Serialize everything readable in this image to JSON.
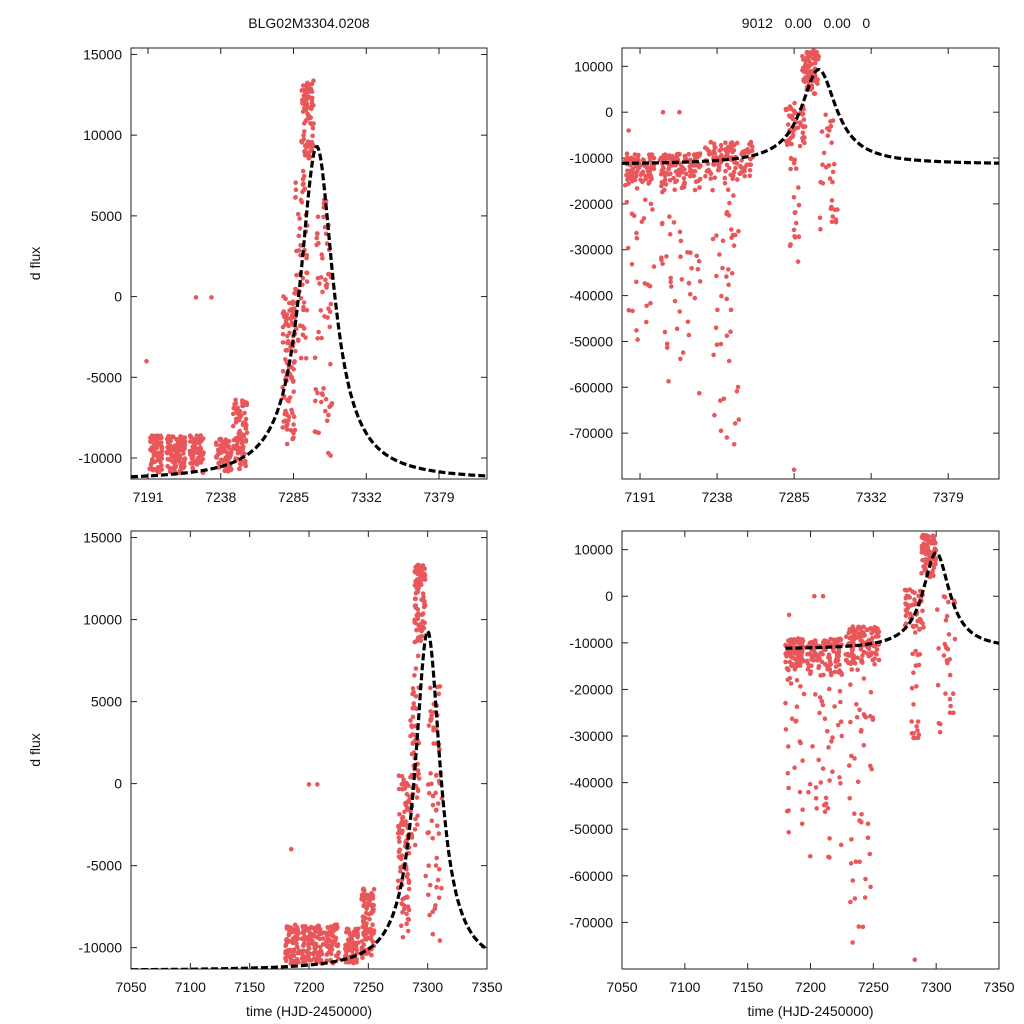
{
  "figure": {
    "titles": [
      "BLG02M3304.0208",
      "9012   0.00   0.00   0"
    ],
    "point_color": "#e8575a",
    "fit_color": "#000000"
  },
  "chart_data": [
    {
      "type": "scatter",
      "panel": "top-left",
      "title": "BLG02M3304.0208",
      "xlabel": "",
      "ylabel": "d flux",
      "xlim": [
        7180,
        7410
      ],
      "ylim": [
        -11300,
        15400
      ],
      "xticks": [
        7191,
        7238,
        7285,
        7332,
        7379
      ],
      "yticks": [
        -10000,
        -5000,
        0,
        5000,
        10000,
        15000
      ],
      "ytick_labels": [
        "-10000",
        "-5000",
        "0",
        "5000",
        "10000",
        "15000"
      ],
      "fit_model": {
        "name": "fit",
        "t0": 7300,
        "peak": 9300,
        "base": -11400,
        "tau": 13
      },
      "data_clusters": [
        {
          "x": [
            7192,
            7200
          ],
          "y": [
            -11000,
            -8600
          ],
          "n": 70
        },
        {
          "x": [
            7203,
            7215
          ],
          "y": [
            -11000,
            -8600
          ],
          "n": 110
        },
        {
          "x": [
            7218,
            7227
          ],
          "y": [
            -11000,
            -8600
          ],
          "n": 60
        },
        {
          "x": [
            7235,
            7245
          ],
          "y": [
            -11000,
            -8800
          ],
          "n": 60
        },
        {
          "x": [
            7246,
            7255
          ],
          "y": [
            -10800,
            -6400
          ],
          "n": 90
        },
        {
          "x": [
            7278,
            7286
          ],
          "y": [
            -9500,
            500
          ],
          "n": 90
        },
        {
          "x": [
            7286,
            7294
          ],
          "y": [
            -4000,
            8000
          ],
          "n": 60
        },
        {
          "x": [
            7290,
            7298
          ],
          "y": [
            8500,
            13400
          ],
          "n": 90
        },
        {
          "x": [
            7298,
            7310
          ],
          "y": [
            -10000,
            6000
          ],
          "n": 60
        }
      ],
      "data_points": [
        {
          "x": [
            7222,
            7232,
            7190
          ],
          "y": [
            -50,
            -50,
            -4000
          ]
        }
      ]
    },
    {
      "type": "scatter",
      "panel": "top-right",
      "title": "9012   0.00   0.00   0",
      "xlabel": "",
      "ylabel": "",
      "xlim": [
        7180,
        7410
      ],
      "ylim": [
        -80000,
        14000
      ],
      "xticks": [
        7191,
        7238,
        7285,
        7332,
        7379
      ],
      "yticks": [
        -70000,
        -60000,
        -50000,
        -40000,
        -30000,
        -20000,
        -10000,
        0,
        10000
      ],
      "ytick_labels": [
        "-70000",
        "-60000",
        "-50000",
        "-40000",
        "-30000",
        "-20000",
        "-10000",
        "0",
        "10000"
      ],
      "fit_model": {
        "name": "fit",
        "t0": 7300,
        "peak": 9300,
        "base": -11400,
        "tau": 13
      },
      "data_clusters": [
        {
          "x": [
            7182,
            7200
          ],
          "y": [
            -16000,
            -9000
          ],
          "n": 90
        },
        {
          "x": [
            7182,
            7200
          ],
          "y": [
            -50000,
            -16000
          ],
          "n": 25
        },
        {
          "x": [
            7203,
            7228
          ],
          "y": [
            -17000,
            -9000
          ],
          "n": 110
        },
        {
          "x": [
            7203,
            7228
          ],
          "y": [
            -62000,
            -17000
          ],
          "n": 40
        },
        {
          "x": [
            7230,
            7260
          ],
          "y": [
            -15000,
            -6500
          ],
          "n": 110
        },
        {
          "x": [
            7235,
            7252
          ],
          "y": [
            -76000,
            -15000
          ],
          "n": 45
        },
        {
          "x": [
            7280,
            7292
          ],
          "y": [
            -8000,
            2000
          ],
          "n": 50
        },
        {
          "x": [
            7282,
            7288
          ],
          "y": [
            -34000,
            -10000
          ],
          "n": 20
        },
        {
          "x": [
            7290,
            7300
          ],
          "y": [
            4000,
            13500
          ],
          "n": 80
        },
        {
          "x": [
            7300,
            7312
          ],
          "y": [
            -30000,
            0
          ],
          "n": 30
        }
      ],
      "data_points": [
        {
          "x": [
            7205,
            7215,
            7184,
            7285
          ],
          "y": [
            0,
            0,
            -4000,
            -78000
          ]
        }
      ]
    },
    {
      "type": "scatter",
      "panel": "bottom-left",
      "title": "",
      "xlabel": "time (HJD-2450000)",
      "ylabel": "d flux",
      "xlim": [
        7050,
        7350
      ],
      "ylim": [
        -11300,
        15400
      ],
      "xticks": [
        7050,
        7100,
        7150,
        7200,
        7250,
        7300,
        7350
      ],
      "yticks": [
        -10000,
        -5000,
        0,
        5000,
        10000,
        15000
      ],
      "ytick_labels": [
        "-10000",
        "-5000",
        "0",
        "5000",
        "10000",
        "15000"
      ],
      "fit_model": {
        "name": "fit",
        "t0": 7300,
        "peak": 9300,
        "base": -11400,
        "tau": 13
      },
      "data_clusters": [
        {
          "x": [
            7180,
            7192
          ],
          "y": [
            -11000,
            -8600
          ],
          "n": 70
        },
        {
          "x": [
            7194,
            7212
          ],
          "y": [
            -11000,
            -8600
          ],
          "n": 110
        },
        {
          "x": [
            7214,
            7225
          ],
          "y": [
            -11000,
            -8600
          ],
          "n": 60
        },
        {
          "x": [
            7230,
            7242
          ],
          "y": [
            -11000,
            -8800
          ],
          "n": 60
        },
        {
          "x": [
            7244,
            7255
          ],
          "y": [
            -10800,
            -6400
          ],
          "n": 90
        },
        {
          "x": [
            7275,
            7285
          ],
          "y": [
            -9500,
            500
          ],
          "n": 90
        },
        {
          "x": [
            7285,
            7293
          ],
          "y": [
            -4000,
            8000
          ],
          "n": 60
        },
        {
          "x": [
            7289,
            7298
          ],
          "y": [
            8500,
            13400
          ],
          "n": 90
        },
        {
          "x": [
            7298,
            7312
          ],
          "y": [
            -10000,
            6000
          ],
          "n": 60
        }
      ],
      "data_points": [
        {
          "x": [
            7200,
            7207,
            7185
          ],
          "y": [
            -50,
            -50,
            -4000
          ]
        }
      ]
    },
    {
      "type": "scatter",
      "panel": "bottom-right",
      "title": "",
      "xlabel": "time (HJD-2450000)",
      "ylabel": "",
      "xlim": [
        7050,
        7350
      ],
      "ylim": [
        -80000,
        14000
      ],
      "xticks": [
        7050,
        7100,
        7150,
        7200,
        7250,
        7300,
        7350
      ],
      "yticks": [
        -70000,
        -60000,
        -50000,
        -40000,
        -30000,
        -20000,
        -10000,
        0,
        10000
      ],
      "ytick_labels": [
        "-70000",
        "-60000",
        "-50000",
        "-40000",
        "-30000",
        "-20000",
        "-10000",
        "0",
        "10000"
      ],
      "fit_model": {
        "name": "fit",
        "t0": 7300,
        "peak": 9300,
        "base": -11400,
        "tau": 13,
        "x_start": 7180
      },
      "data_clusters": [
        {
          "x": [
            7180,
            7195
          ],
          "y": [
            -16000,
            -9000
          ],
          "n": 90
        },
        {
          "x": [
            7180,
            7195
          ],
          "y": [
            -55000,
            -16000
          ],
          "n": 25
        },
        {
          "x": [
            7197,
            7225
          ],
          "y": [
            -17000,
            -9000
          ],
          "n": 110
        },
        {
          "x": [
            7197,
            7225
          ],
          "y": [
            -62000,
            -17000
          ],
          "n": 40
        },
        {
          "x": [
            7228,
            7255
          ],
          "y": [
            -15000,
            -6500
          ],
          "n": 110
        },
        {
          "x": [
            7230,
            7250
          ],
          "y": [
            -76000,
            -15000
          ],
          "n": 45
        },
        {
          "x": [
            7275,
            7290
          ],
          "y": [
            -8000,
            2000
          ],
          "n": 50
        },
        {
          "x": [
            7280,
            7287
          ],
          "y": [
            -34000,
            -10000
          ],
          "n": 20
        },
        {
          "x": [
            7288,
            7300
          ],
          "y": [
            4000,
            13500
          ],
          "n": 80
        },
        {
          "x": [
            7300,
            7315
          ],
          "y": [
            -30000,
            0
          ],
          "n": 30
        }
      ],
      "data_points": [
        {
          "x": [
            7203,
            7210,
            7183,
            7283
          ],
          "y": [
            0,
            0,
            -4000,
            -78000
          ]
        }
      ]
    }
  ]
}
